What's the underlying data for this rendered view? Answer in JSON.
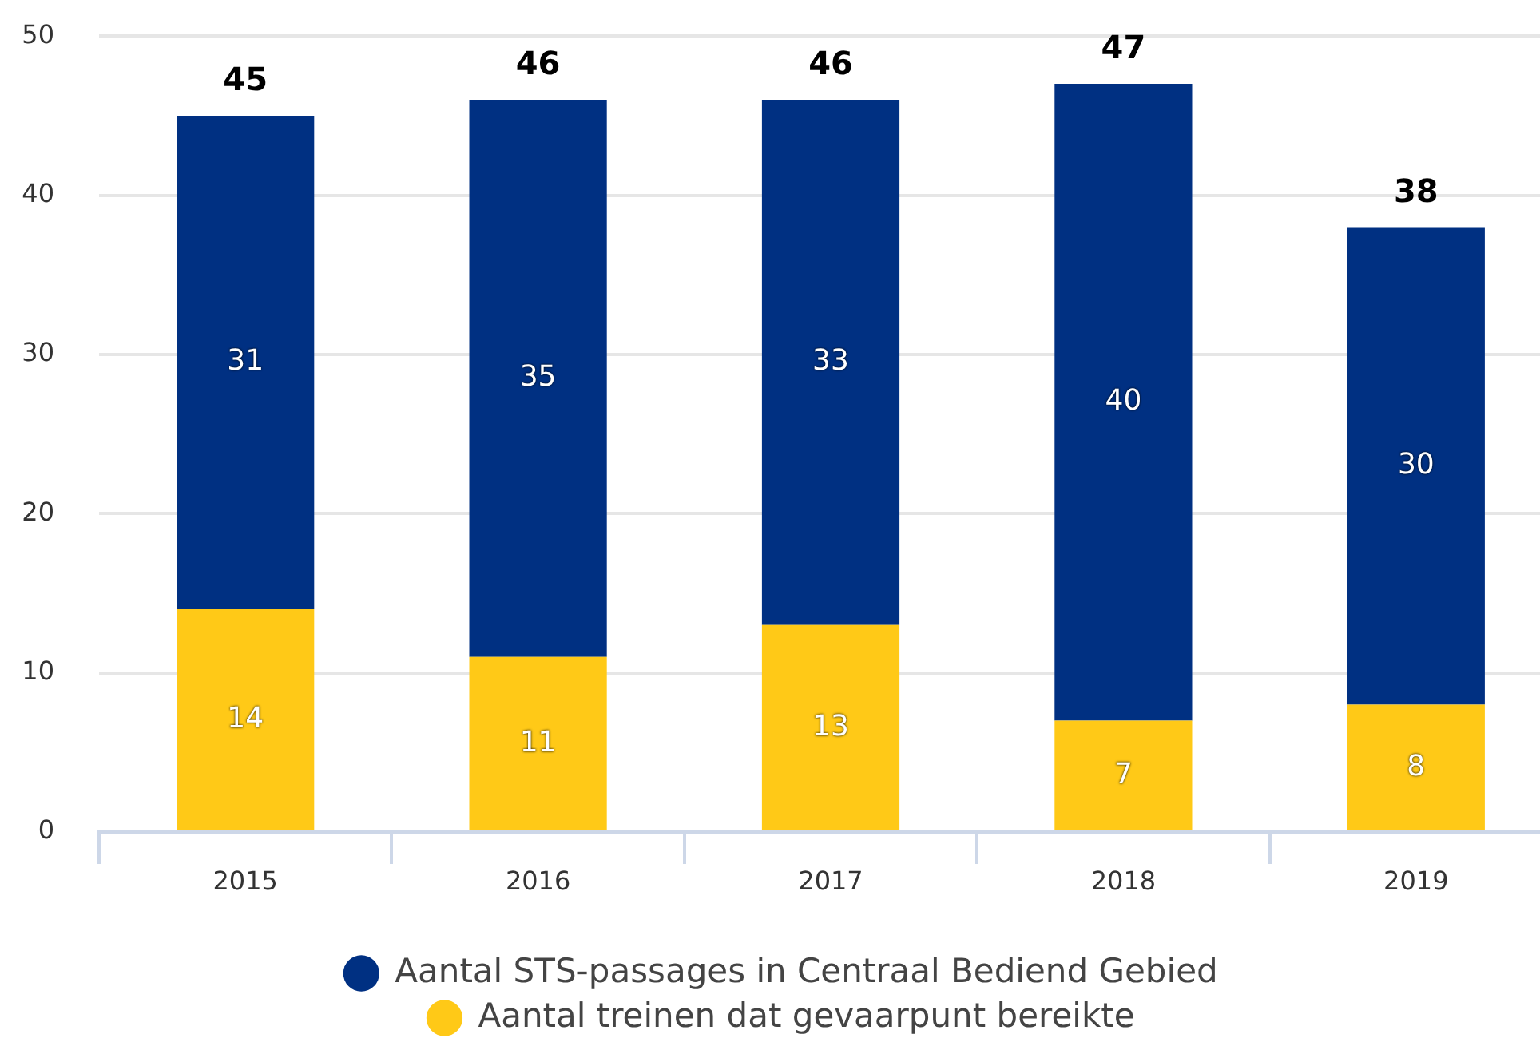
{
  "chart_data": {
    "type": "bar",
    "stacked": true,
    "categories": [
      "2015",
      "2016",
      "2017",
      "2018",
      "2019"
    ],
    "series": [
      {
        "name": "Aantal treinen dat gevaarpunt bereikte",
        "color": "#ffc917",
        "values": [
          14,
          11,
          13,
          7,
          8
        ]
      },
      {
        "name": "Aantal STS-passages in Centraal Bediend Gebied",
        "color": "#003082",
        "values": [
          31,
          35,
          33,
          40,
          30
        ]
      }
    ],
    "ylim": [
      0,
      50
    ],
    "yticks": [
      0,
      10,
      20,
      30,
      40,
      50
    ],
    "grid": "y",
    "legend": "bottom",
    "data_labels": true,
    "totals": [
      "45",
      "46",
      "46",
      "47",
      "38"
    ]
  }
}
